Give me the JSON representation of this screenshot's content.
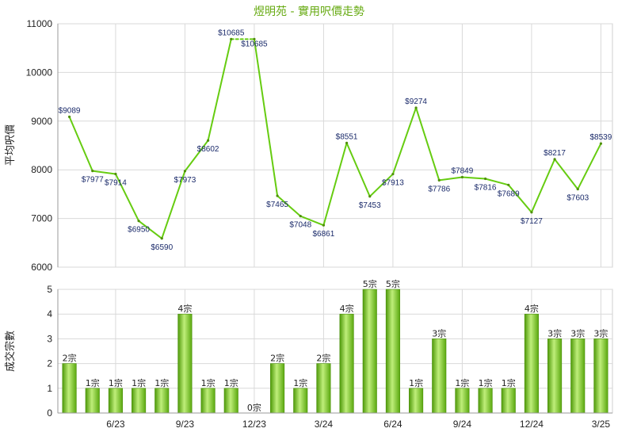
{
  "chart_data": [
    {
      "type": "line",
      "title": "煜明苑 - 實用呎價走勢",
      "ylabel": "平均呎價",
      "ylim": [
        6000,
        11000
      ],
      "yticks": [
        6000,
        7000,
        8000,
        9000,
        10000,
        11000
      ],
      "grid": true,
      "line_color": "#66cc11",
      "x_tick_labels": [
        "6/23",
        "9/23",
        "12/23",
        "3/24",
        "6/24",
        "9/24",
        "12/24",
        "3/25"
      ],
      "series": [
        {
          "values": [
            9089,
            7977,
            7914,
            6950,
            6590,
            7973,
            8602,
            10685,
            10685,
            7465,
            7048,
            6861,
            8551,
            7453,
            7913,
            9274,
            7786,
            7849,
            7816,
            7689,
            7127,
            8217,
            7603,
            8539
          ],
          "labels": [
            "$9089",
            "$7977",
            "$7914",
            "$6950",
            "$6590",
            "$7973",
            "$8602",
            "$10685",
            "$10685",
            "$7465",
            "$7048",
            "$6861",
            "$8551",
            "$7453",
            "$7913",
            "$9274",
            "$7786",
            "$7849",
            "$7816",
            "$7689",
            "$7127",
            "$8217",
            "$7603",
            "$8539"
          ],
          "dashed_segments": [
            [
              7,
              8
            ]
          ]
        }
      ]
    },
    {
      "type": "bar",
      "ylabel": "成交宗數",
      "ylim": [
        0,
        5
      ],
      "yticks": [
        0,
        1,
        2,
        3,
        4,
        5
      ],
      "grid": true,
      "bar_color": "#66bb11",
      "x_tick_labels": [
        "6/23",
        "9/23",
        "12/23",
        "3/24",
        "6/24",
        "9/24",
        "12/24",
        "3/25"
      ],
      "series": [
        {
          "values": [
            2,
            1,
            1,
            1,
            1,
            4,
            1,
            1,
            0,
            2,
            1,
            2,
            4,
            5,
            5,
            1,
            3,
            1,
            1,
            1,
            4,
            3,
            3,
            3
          ],
          "labels": [
            "2宗",
            "1宗",
            "1宗",
            "1宗",
            "1宗",
            "4宗",
            "1宗",
            "1宗",
            "0宗",
            "2宗",
            "1宗",
            "2宗",
            "4宗",
            "5宗",
            "5宗",
            "1宗",
            "3宗",
            "1宗",
            "1宗",
            "1宗",
            "4宗",
            "3宗",
            "3宗",
            "3宗"
          ]
        }
      ]
    }
  ]
}
